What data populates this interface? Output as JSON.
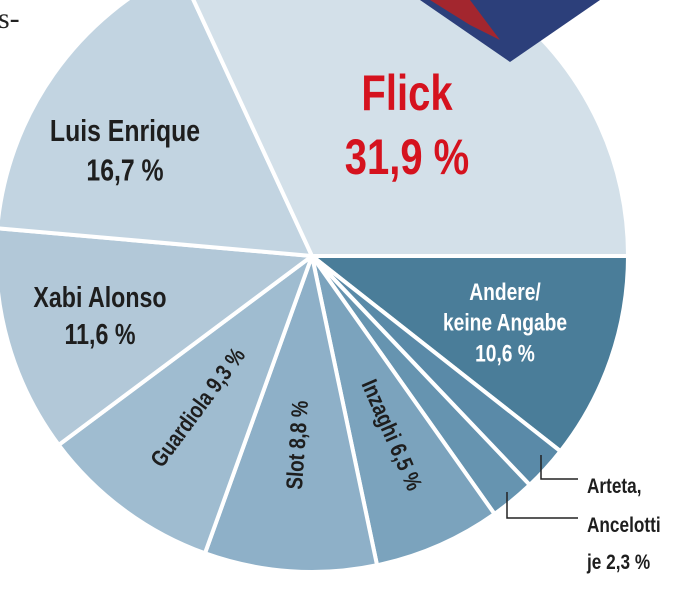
{
  "header_fragment": "s-",
  "chart_data": {
    "type": "pie",
    "title": "",
    "unit": "%",
    "start_direction": "clockwise from 3 o'clock",
    "slices": [
      {
        "name": "Andere/ keine Angabe",
        "label_lines": [
          "Andere/",
          "keine Angabe",
          "10,6 %"
        ],
        "value": 10.6,
        "color": "#4a7d99"
      },
      {
        "name": "Arteta",
        "value": 2.3,
        "color": "#5a8aa8"
      },
      {
        "name": "Ancelotti",
        "value": 2.3,
        "color": "#6694b0"
      },
      {
        "name": "Inzaghi",
        "label_lines": [
          "Inzaghi 6,5 %"
        ],
        "value": 6.5,
        "color": "#7ba3bd"
      },
      {
        "name": "Slot",
        "label_lines": [
          "Slot 8,8 %"
        ],
        "value": 8.8,
        "color": "#8eb0c8"
      },
      {
        "name": "Guardiola",
        "label_lines": [
          "Guardiola 9,3 %"
        ],
        "value": 9.3,
        "color": "#9fbcd0"
      },
      {
        "name": "Xabi Alonso",
        "label_lines": [
          "Xabi Alonso",
          "11,6 %"
        ],
        "value": 11.6,
        "color": "#b2c8d8"
      },
      {
        "name": "Luis Enrique",
        "label_lines": [
          "Luis Enrique",
          "16,7 %"
        ],
        "value": 16.7,
        "color": "#c2d4e1"
      },
      {
        "name": "Flick",
        "label_lines": [
          "Flick",
          "31,9 %"
        ],
        "value": 31.9,
        "color": "#d3e0e9",
        "label_color": "#d5121e"
      }
    ],
    "callout_lines": [
      "Arteta,",
      "Ancelotti",
      "je 2,3 %"
    ],
    "label_colors": {
      "dark": "#1e1e1e",
      "light": "#ffffff",
      "highlight": "#d5121e"
    }
  }
}
